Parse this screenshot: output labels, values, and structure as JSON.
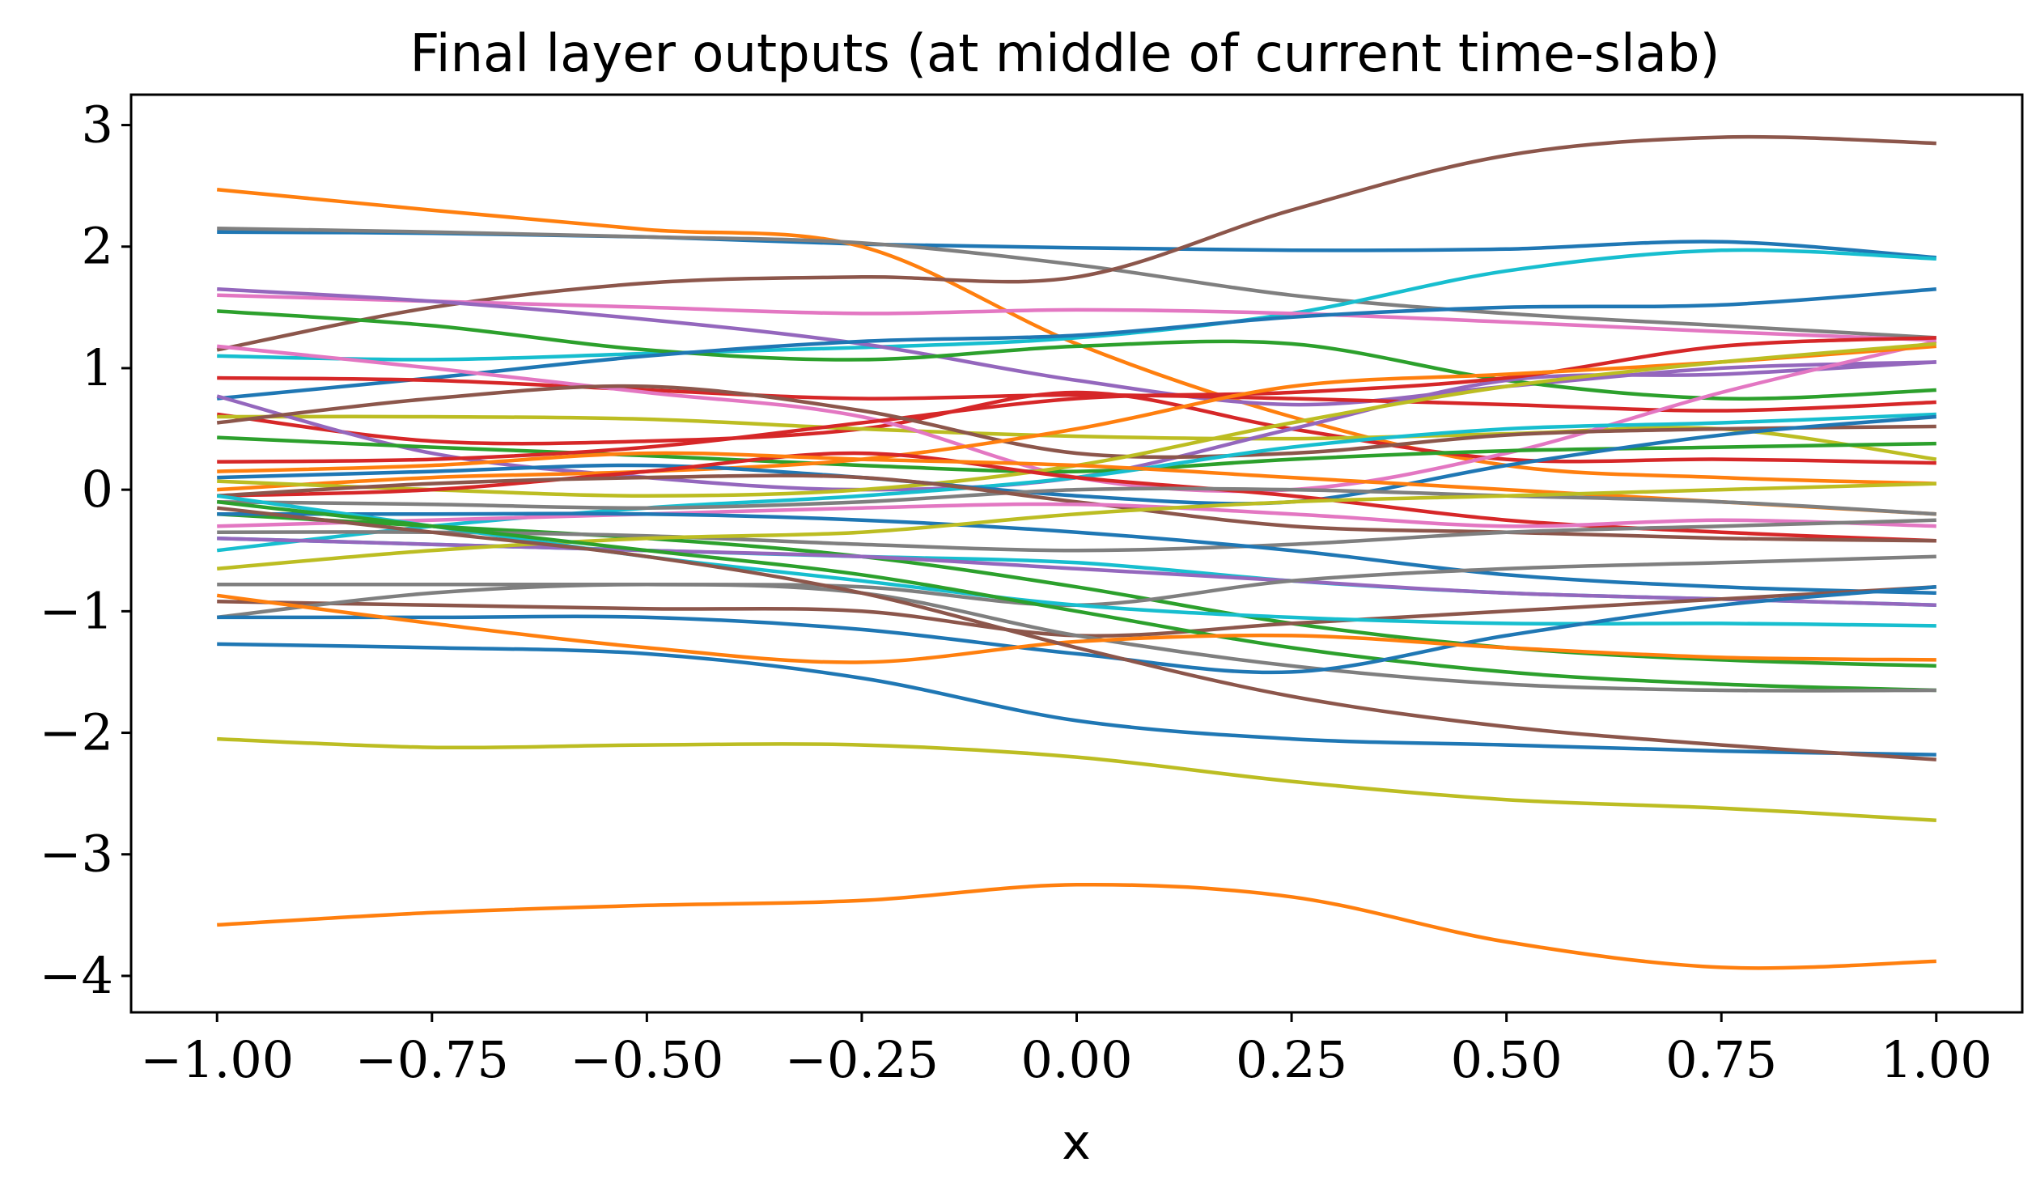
{
  "chart_data": {
    "type": "line",
    "title": "Final layer outputs (at middle of current time-slab)",
    "xlabel": "x",
    "ylabel": "",
    "xlim": [
      -1.1,
      1.1
    ],
    "ylim": [
      -4.3,
      3.25
    ],
    "grid": false,
    "legend": "none",
    "x_ticks": [
      -1.0,
      -0.75,
      -0.5,
      -0.25,
      0.0,
      0.25,
      0.5,
      0.75,
      1.0
    ],
    "x_tick_labels": [
      "−1.00",
      "−0.75",
      "−0.50",
      "−0.25",
      "0.00",
      "0.25",
      "0.50",
      "0.75",
      "1.00"
    ],
    "y_ticks": [
      3,
      2,
      1,
      0,
      -1,
      -2,
      -3,
      -4
    ],
    "y_tick_labels": [
      "3",
      "2",
      "1",
      "0",
      "−1",
      "−2",
      "−3",
      "−4"
    ],
    "x": [
      -1.0,
      -0.75,
      -0.5,
      -0.25,
      0.0,
      0.25,
      0.5,
      0.75,
      1.0
    ],
    "series": [
      {
        "color": "#1f77b4",
        "values": [
          2.12,
          2.11,
          2.08,
          2.02,
          1.99,
          1.97,
          1.98,
          2.04,
          1.91
        ]
      },
      {
        "color": "#ff7f0e",
        "values": [
          2.47,
          2.3,
          2.14,
          2.0,
          1.2,
          0.6,
          0.2,
          0.1,
          0.05
        ]
      },
      {
        "color": "#7f7f7f",
        "values": [
          2.15,
          2.12,
          2.08,
          2.03,
          1.85,
          1.6,
          1.45,
          1.35,
          1.25
        ]
      },
      {
        "color": "#8c564b",
        "values": [
          1.15,
          1.5,
          1.7,
          1.75,
          1.75,
          2.3,
          2.75,
          2.9,
          2.85
        ]
      },
      {
        "color": "#17becf",
        "values": [
          1.1,
          1.07,
          1.12,
          1.17,
          1.25,
          1.45,
          1.8,
          1.97,
          1.9
        ]
      },
      {
        "color": "#e377c2",
        "values": [
          1.6,
          1.55,
          1.5,
          1.45,
          1.48,
          1.45,
          1.38,
          1.3,
          1.23
        ]
      },
      {
        "color": "#9467bd",
        "values": [
          1.65,
          1.55,
          1.4,
          1.2,
          0.9,
          0.7,
          0.85,
          1.0,
          1.05
        ]
      },
      {
        "color": "#2ca02c",
        "values": [
          1.47,
          1.35,
          1.15,
          1.07,
          1.18,
          1.2,
          0.9,
          0.75,
          0.82
        ]
      },
      {
        "color": "#1f77b4",
        "values": [
          0.75,
          0.92,
          1.1,
          1.22,
          1.27,
          1.42,
          1.5,
          1.52,
          1.65
        ]
      },
      {
        "color": "#d62728",
        "values": [
          0.92,
          0.9,
          0.82,
          0.75,
          0.78,
          0.75,
          0.7,
          0.65,
          0.72
        ]
      },
      {
        "color": "#d62728",
        "values": [
          0.62,
          0.4,
          0.4,
          0.5,
          0.8,
          0.5,
          0.25,
          0.25,
          0.22
        ]
      },
      {
        "color": "#bcbd22",
        "values": [
          0.6,
          0.6,
          0.58,
          0.5,
          0.44,
          0.42,
          0.46,
          0.5,
          0.25
        ]
      },
      {
        "color": "#9467bd",
        "values": [
          0.77,
          0.3,
          0.1,
          0.0,
          0.1,
          0.5,
          0.9,
          0.95,
          1.05
        ]
      },
      {
        "color": "#e377c2",
        "values": [
          1.18,
          1.0,
          0.8,
          0.6,
          0.1,
          0.0,
          0.3,
          0.8,
          1.22
        ]
      },
      {
        "color": "#2ca02c",
        "values": [
          0.43,
          0.35,
          0.28,
          0.2,
          0.15,
          0.25,
          0.32,
          0.35,
          0.38
        ]
      },
      {
        "color": "#d62728",
        "values": [
          0.23,
          0.25,
          0.35,
          0.55,
          0.75,
          0.8,
          0.92,
          1.18,
          1.25
        ]
      },
      {
        "color": "#8c564b",
        "values": [
          0.55,
          0.75,
          0.85,
          0.65,
          0.3,
          0.3,
          0.45,
          0.5,
          0.52
        ]
      },
      {
        "color": "#ff7f0e",
        "values": [
          0.0,
          0.1,
          0.15,
          0.25,
          0.5,
          0.85,
          0.95,
          1.05,
          1.18
        ]
      },
      {
        "color": "#bcbd22",
        "values": [
          0.07,
          0.0,
          -0.05,
          0.0,
          0.2,
          0.55,
          0.85,
          1.05,
          1.2
        ]
      },
      {
        "color": "#17becf",
        "values": [
          -0.5,
          -0.3,
          -0.15,
          -0.05,
          0.1,
          0.35,
          0.5,
          0.55,
          0.62
        ]
      },
      {
        "color": "#1f77b4",
        "values": [
          0.1,
          0.15,
          0.2,
          0.1,
          -0.05,
          -0.1,
          0.2,
          0.45,
          0.6
        ]
      },
      {
        "color": "#d62728",
        "values": [
          -0.05,
          0.0,
          0.15,
          0.3,
          0.1,
          -0.05,
          -0.25,
          -0.35,
          -0.42
        ]
      },
      {
        "color": "#ff7f0e",
        "values": [
          0.15,
          0.2,
          0.3,
          0.25,
          0.2,
          0.1,
          0.0,
          -0.1,
          -0.2
        ]
      },
      {
        "color": "#7f7f7f",
        "values": [
          -0.1,
          -0.12,
          -0.15,
          -0.1,
          0.0,
          0.0,
          -0.05,
          -0.1,
          -0.2
        ]
      },
      {
        "color": "#8c564b",
        "values": [
          -0.05,
          0.05,
          0.1,
          0.1,
          -0.1,
          -0.3,
          -0.35,
          -0.4,
          -0.42
        ]
      },
      {
        "color": "#e377c2",
        "values": [
          -0.3,
          -0.25,
          -0.2,
          -0.15,
          -0.12,
          -0.2,
          -0.3,
          -0.25,
          -0.3
        ]
      },
      {
        "color": "#2ca02c",
        "values": [
          -0.2,
          -0.3,
          -0.4,
          -0.55,
          -0.8,
          -1.1,
          -1.3,
          -1.4,
          -1.45
        ]
      },
      {
        "color": "#17becf",
        "values": [
          -0.4,
          -0.45,
          -0.5,
          -0.55,
          -0.6,
          -0.75,
          -0.85,
          -0.9,
          -0.95
        ]
      },
      {
        "color": "#7f7f7f",
        "values": [
          -0.35,
          -0.35,
          -0.38,
          -0.45,
          -0.5,
          -0.45,
          -0.35,
          -0.3,
          -0.25
        ]
      },
      {
        "color": "#1f77b4",
        "values": [
          -0.2,
          -0.2,
          -0.2,
          -0.25,
          -0.35,
          -0.5,
          -0.7,
          -0.8,
          -0.85
        ]
      },
      {
        "color": "#9467bd",
        "values": [
          -0.4,
          -0.45,
          -0.5,
          -0.55,
          -0.65,
          -0.75,
          -0.85,
          -0.9,
          -0.95
        ]
      },
      {
        "color": "#bcbd22",
        "values": [
          -0.65,
          -0.5,
          -0.4,
          -0.35,
          -0.2,
          -0.1,
          -0.05,
          0.0,
          0.05
        ]
      },
      {
        "color": "#7f7f7f",
        "values": [
          -0.78,
          -0.78,
          -0.78,
          -0.8,
          -0.95,
          -0.75,
          -0.65,
          -0.6,
          -0.55
        ]
      },
      {
        "color": "#8c564b",
        "values": [
          -0.92,
          -0.95,
          -0.98,
          -1.0,
          -1.2,
          -1.1,
          -1.0,
          -0.9,
          -0.8
        ]
      },
      {
        "color": "#17becf",
        "values": [
          -0.05,
          -0.3,
          -0.55,
          -0.75,
          -0.95,
          -1.05,
          -1.1,
          -1.1,
          -1.12
        ]
      },
      {
        "color": "#2ca02c",
        "values": [
          -0.1,
          -0.3,
          -0.5,
          -0.7,
          -1.0,
          -1.3,
          -1.5,
          -1.6,
          -1.65
        ]
      },
      {
        "color": "#7f7f7f",
        "values": [
          -1.05,
          -0.85,
          -0.78,
          -0.85,
          -1.2,
          -1.45,
          -1.6,
          -1.65,
          -1.65
        ]
      },
      {
        "color": "#1f77b4",
        "values": [
          -1.05,
          -1.05,
          -1.05,
          -1.15,
          -1.35,
          -1.5,
          -1.2,
          -0.95,
          -0.8
        ]
      },
      {
        "color": "#ff7f0e",
        "values": [
          -0.87,
          -1.1,
          -1.3,
          -1.42,
          -1.25,
          -1.2,
          -1.3,
          -1.38,
          -1.4
        ]
      },
      {
        "color": "#1f77b4",
        "values": [
          -1.27,
          -1.3,
          -1.35,
          -1.55,
          -1.9,
          -2.05,
          -2.1,
          -2.15,
          -2.18
        ]
      },
      {
        "color": "#8c564b",
        "values": [
          -0.15,
          -0.35,
          -0.55,
          -0.85,
          -1.3,
          -1.7,
          -1.95,
          -2.1,
          -2.22
        ]
      },
      {
        "color": "#bcbd22",
        "values": [
          -2.05,
          -2.12,
          -2.1,
          -2.1,
          -2.2,
          -2.4,
          -2.55,
          -2.62,
          -2.72
        ]
      },
      {
        "color": "#ff7f0e",
        "values": [
          -3.58,
          -3.48,
          -3.42,
          -3.38,
          -3.25,
          -3.35,
          -3.72,
          -3.93,
          -3.88
        ]
      }
    ]
  }
}
